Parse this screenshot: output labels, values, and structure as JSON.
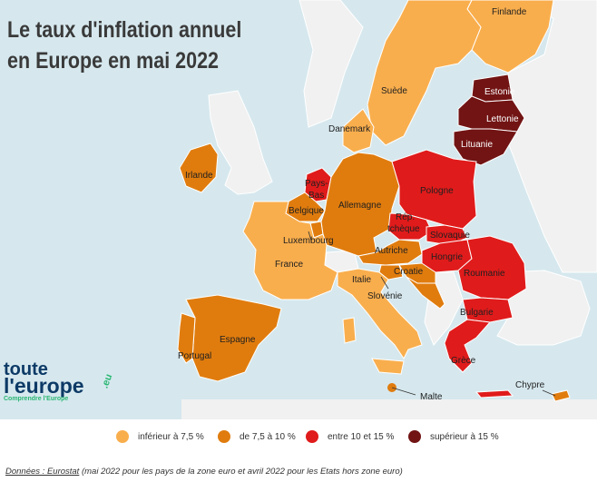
{
  "title": "Le taux d'inflation annuel en Europe en mai 2022",
  "colors": {
    "sea": "#d6e8ee",
    "land_gray": "#f1f1f1",
    "cat1": "#f9ae4d",
    "cat2": "#e07c0e",
    "cat3": "#e01b1b",
    "cat4": "#721414"
  },
  "countries": [
    {
      "name": "Finlande",
      "category": "cat1"
    },
    {
      "name": "Suède",
      "category": "cat1"
    },
    {
      "name": "Estonie",
      "category": "cat4"
    },
    {
      "name": "Lettonie",
      "category": "cat4"
    },
    {
      "name": "Lituanie",
      "category": "cat4"
    },
    {
      "name": "Danemark",
      "category": "cat1"
    },
    {
      "name": "Irlande",
      "category": "cat2"
    },
    {
      "name": "Pays-Bas",
      "category": "cat3"
    },
    {
      "name": "Belgique",
      "category": "cat2"
    },
    {
      "name": "Luxembourg",
      "category": "cat2"
    },
    {
      "name": "Allemagne",
      "category": "cat2"
    },
    {
      "name": "Pologne",
      "category": "cat3"
    },
    {
      "name": "République tchèque",
      "category": "cat3"
    },
    {
      "name": "Slovaquie",
      "category": "cat3"
    },
    {
      "name": "Autriche",
      "category": "cat2"
    },
    {
      "name": "Hongrie",
      "category": "cat3"
    },
    {
      "name": "Roumanie",
      "category": "cat3"
    },
    {
      "name": "France",
      "category": "cat1"
    },
    {
      "name": "Italie",
      "category": "cat1"
    },
    {
      "name": "Slovénie",
      "category": "cat2"
    },
    {
      "name": "Croatie",
      "category": "cat2"
    },
    {
      "name": "Bulgarie",
      "category": "cat3"
    },
    {
      "name": "Grèce",
      "category": "cat3"
    },
    {
      "name": "Espagne",
      "category": "cat2"
    },
    {
      "name": "Portugal",
      "category": "cat2"
    },
    {
      "name": "Malte",
      "category": "cat2"
    },
    {
      "name": "Chypre",
      "category": "cat2"
    }
  ],
  "labels": {
    "finlande": "Finlande",
    "suede": "Suède",
    "estonie": "Estonie",
    "lettonie": "Lettonie",
    "lituanie": "Lituanie",
    "danemark": "Danemark",
    "irlande": "Irlande",
    "pays_bas_1": "Pays-",
    "pays_bas_2": "Bas",
    "belgique": "Belgique",
    "luxembourg": "Luxembourg",
    "allemagne": "Allemagne",
    "pologne": "Pologne",
    "rep_1": "Rép.",
    "rep_2": "tchèque",
    "slovaquie": "Slovaquie",
    "autriche": "Autriche",
    "hongrie": "Hongrie",
    "roumanie": "Roumanie",
    "france": "France",
    "italie": "Italie",
    "croatie": "Croatie",
    "slovenie": "Slovénie",
    "bulgarie": "Bulgarie",
    "grece": "Grèce",
    "espagne": "Espagne",
    "portugal": "Portugal",
    "malte": "Malte",
    "chypre": "Chypre"
  },
  "legend": [
    {
      "label": "inférieur à 7,5 %",
      "color": "#f9ae4d"
    },
    {
      "label": "de 7,5 à 10 %",
      "color": "#e07c0e"
    },
    {
      "label": "entre 10 et 15 %",
      "color": "#e01b1b"
    },
    {
      "label": "supérieur à 15 %",
      "color": "#721414"
    }
  ],
  "logo": {
    "line1": "toute",
    "line2": "l'europe",
    "line3": "Comprendre l'Europe",
    "suffix": ".eu"
  },
  "source": {
    "prefix": "Données : Eurostat",
    "text": " (mai 2022 pour les pays de la zone euro et avril 2022 pour les Etats hors zone euro)"
  }
}
